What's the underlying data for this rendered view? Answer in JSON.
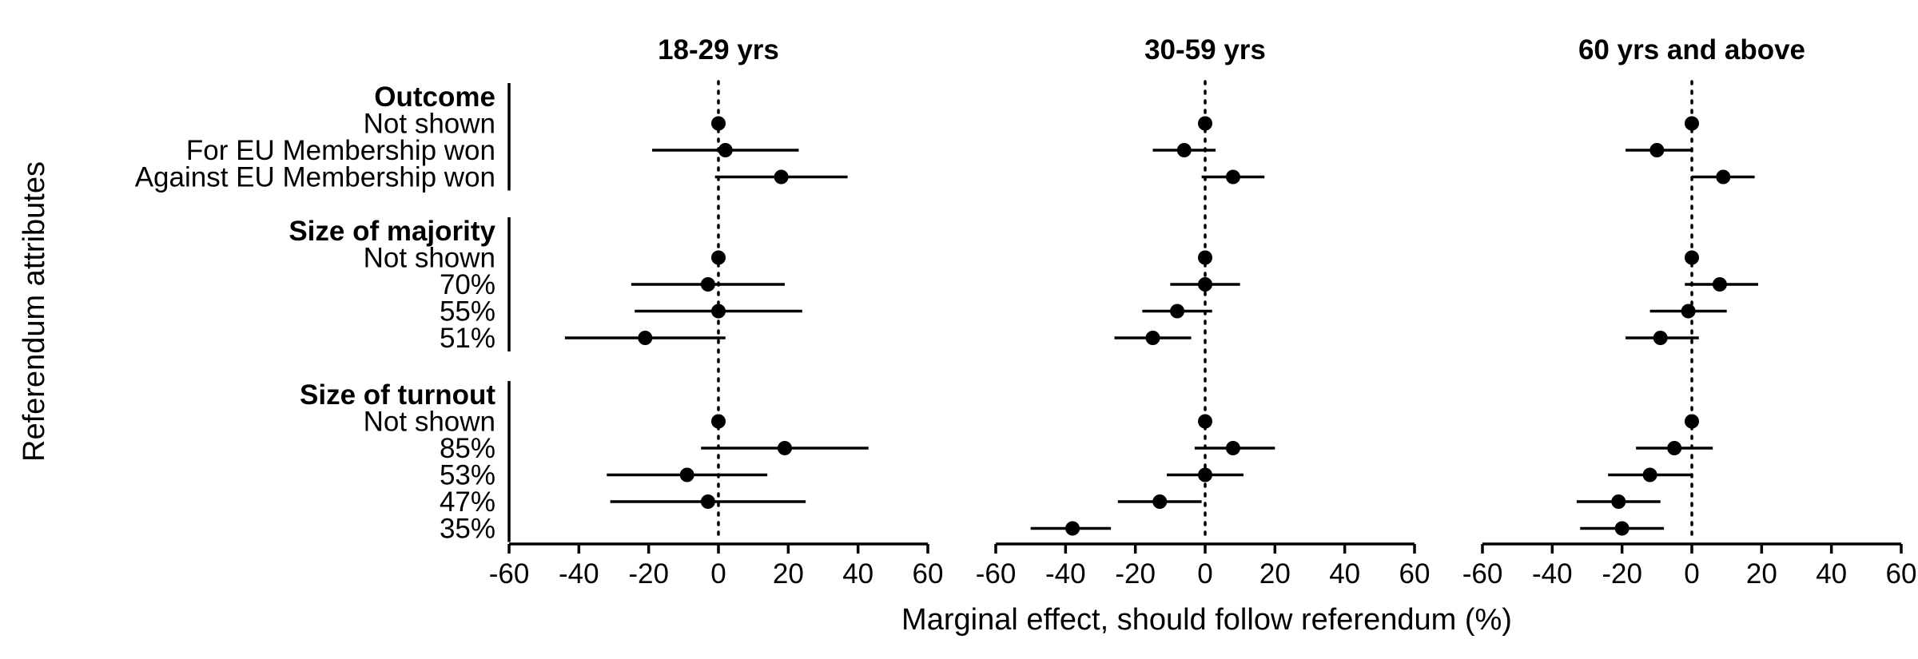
{
  "chart_data": {
    "type": "scatter",
    "subtype": "coefficient plot with confidence intervals",
    "xlabel": "Marginal effect, should follow referendum (%)",
    "ylabel": "Referendum attributes",
    "xlim": [
      -60,
      60
    ],
    "xticks": [
      -60,
      -40,
      -20,
      0,
      20,
      40,
      60
    ],
    "reference_line": {
      "x": 0,
      "style": "dotted"
    },
    "groups": [
      {
        "header": "Outcome",
        "levels": [
          "Not shown",
          "For EU Membership won",
          "Against EU Membership won"
        ]
      },
      {
        "header": "Size of majority",
        "levels": [
          "Not shown",
          "70%",
          "55%",
          "51%"
        ]
      },
      {
        "header": "Size of turnout",
        "levels": [
          "Not shown",
          "85%",
          "53%",
          "47%",
          "35%"
        ]
      }
    ],
    "panels": [
      {
        "title": "18-29 yrs",
        "points": [
          {
            "attribute": "Outcome",
            "level": "Not shown",
            "estimate": 0,
            "lower": 0,
            "upper": 0
          },
          {
            "attribute": "Outcome",
            "level": "For EU Membership won",
            "estimate": 2,
            "lower": -19,
            "upper": 23
          },
          {
            "attribute": "Outcome",
            "level": "Against EU Membership won",
            "estimate": 18,
            "lower": -1,
            "upper": 37
          },
          {
            "attribute": "Size of majority",
            "level": "Not shown",
            "estimate": 0,
            "lower": 0,
            "upper": 0
          },
          {
            "attribute": "Size of majority",
            "level": "70%",
            "estimate": -3,
            "lower": -25,
            "upper": 19
          },
          {
            "attribute": "Size of majority",
            "level": "55%",
            "estimate": 0,
            "lower": -24,
            "upper": 24
          },
          {
            "attribute": "Size of majority",
            "level": "51%",
            "estimate": -21,
            "lower": -44,
            "upper": 2
          },
          {
            "attribute": "Size of turnout",
            "level": "Not shown",
            "estimate": 0,
            "lower": 0,
            "upper": 0
          },
          {
            "attribute": "Size of turnout",
            "level": "85%",
            "estimate": 19,
            "lower": -5,
            "upper": 43
          },
          {
            "attribute": "Size of turnout",
            "level": "53%",
            "estimate": -9,
            "lower": -32,
            "upper": 14
          },
          {
            "attribute": "Size of turnout",
            "level": "47%",
            "estimate": -3,
            "lower": -31,
            "upper": 25
          },
          {
            "attribute": "Size of turnout",
            "level": "35%",
            "estimate": null,
            "lower": null,
            "upper": null
          }
        ]
      },
      {
        "title": "30-59 yrs",
        "points": [
          {
            "attribute": "Outcome",
            "level": "Not shown",
            "estimate": 0,
            "lower": 0,
            "upper": 0
          },
          {
            "attribute": "Outcome",
            "level": "For EU Membership won",
            "estimate": -6,
            "lower": -15,
            "upper": 3
          },
          {
            "attribute": "Outcome",
            "level": "Against EU Membership won",
            "estimate": 8,
            "lower": -1,
            "upper": 17
          },
          {
            "attribute": "Size of majority",
            "level": "Not shown",
            "estimate": 0,
            "lower": 0,
            "upper": 0
          },
          {
            "attribute": "Size of majority",
            "level": "70%",
            "estimate": 0,
            "lower": -10,
            "upper": 10
          },
          {
            "attribute": "Size of majority",
            "level": "55%",
            "estimate": -8,
            "lower": -18,
            "upper": 2
          },
          {
            "attribute": "Size of majority",
            "level": "51%",
            "estimate": -15,
            "lower": -26,
            "upper": -4
          },
          {
            "attribute": "Size of turnout",
            "level": "Not shown",
            "estimate": 0,
            "lower": 0,
            "upper": 0
          },
          {
            "attribute": "Size of turnout",
            "level": "85%",
            "estimate": 8,
            "lower": -3,
            "upper": 20
          },
          {
            "attribute": "Size of turnout",
            "level": "53%",
            "estimate": 0,
            "lower": -11,
            "upper": 11
          },
          {
            "attribute": "Size of turnout",
            "level": "47%",
            "estimate": -13,
            "lower": -25,
            "upper": -1
          },
          {
            "attribute": "Size of turnout",
            "level": "35%",
            "estimate": -38,
            "lower": -50,
            "upper": -27
          }
        ]
      },
      {
        "title": "60 yrs and above",
        "points": [
          {
            "attribute": "Outcome",
            "level": "Not shown",
            "estimate": 0,
            "lower": 0,
            "upper": 0
          },
          {
            "attribute": "Outcome",
            "level": "For EU Membership won",
            "estimate": -10,
            "lower": -19,
            "upper": 0
          },
          {
            "attribute": "Outcome",
            "level": "Against EU Membership won",
            "estimate": 9,
            "lower": 0,
            "upper": 18
          },
          {
            "attribute": "Size of majority",
            "level": "Not shown",
            "estimate": 0,
            "lower": 0,
            "upper": 0
          },
          {
            "attribute": "Size of majority",
            "level": "70%",
            "estimate": 8,
            "lower": -2,
            "upper": 19
          },
          {
            "attribute": "Size of majority",
            "level": "55%",
            "estimate": -1,
            "lower": -12,
            "upper": 10
          },
          {
            "attribute": "Size of majority",
            "level": "51%",
            "estimate": -9,
            "lower": -19,
            "upper": 2
          },
          {
            "attribute": "Size of turnout",
            "level": "Not shown",
            "estimate": 0,
            "lower": 0,
            "upper": 0
          },
          {
            "attribute": "Size of turnout",
            "level": "85%",
            "estimate": -5,
            "lower": -16,
            "upper": 6
          },
          {
            "attribute": "Size of turnout",
            "level": "53%",
            "estimate": -12,
            "lower": -24,
            "upper": 0
          },
          {
            "attribute": "Size of turnout",
            "level": "47%",
            "estimate": -21,
            "lower": -33,
            "upper": -9
          },
          {
            "attribute": "Size of turnout",
            "level": "35%",
            "estimate": -20,
            "lower": -32,
            "upper": -8
          }
        ]
      }
    ]
  }
}
